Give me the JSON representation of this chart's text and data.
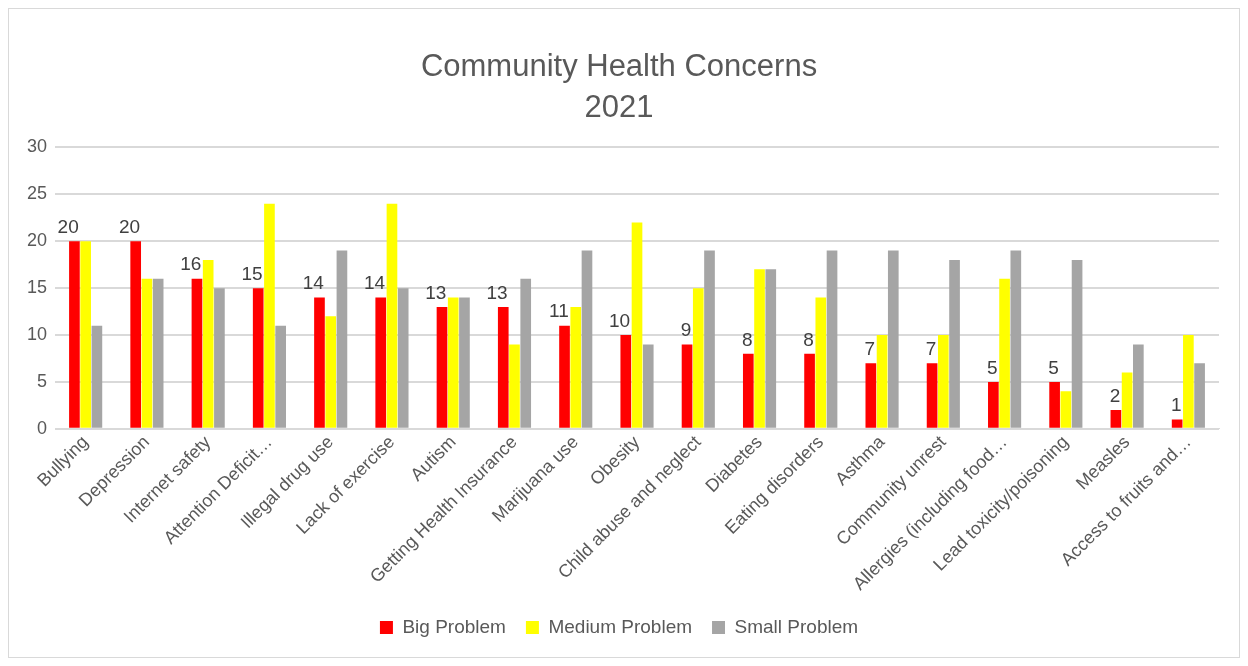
{
  "chart_data": {
    "type": "bar",
    "title": "Community Health Concerns",
    "subtitle": "2021",
    "categories": [
      "Bullying",
      "Depression",
      "Internet safety",
      "Attention Deficit…",
      "Illegal drug use",
      "Lack of exercise",
      "Autism",
      "Getting Health Insurance",
      "Marijuana use",
      "Obesity",
      "Child abuse and neglect",
      "Diabetes",
      "Eating disorders",
      "Asthma",
      "Community unrest",
      "Allergies (including food…",
      "Lead toxicity/poisoning",
      "Measles",
      "Access to fruits and…"
    ],
    "series": [
      {
        "name": "Big Problem",
        "color": "#ff0000",
        "values": [
          20,
          20,
          16,
          15,
          14,
          14,
          13,
          13,
          11,
          10,
          9,
          8,
          8,
          7,
          7,
          5,
          5,
          2,
          1
        ],
        "value_labels": [
          "20",
          "20",
          "16",
          "15",
          "14",
          "14",
          "13",
          "13",
          "11",
          "10",
          "9",
          "8",
          "8",
          "7",
          "7",
          "5",
          "5",
          "2",
          "1"
        ]
      },
      {
        "name": "Medium Problem",
        "color": "#ffff00",
        "values": [
          20,
          16,
          18,
          24,
          12,
          24,
          14,
          9,
          13,
          22,
          15,
          17,
          14,
          10,
          10,
          16,
          4,
          6,
          10
        ]
      },
      {
        "name": "Small Problem",
        "color": "#a5a5a5",
        "values": [
          11,
          16,
          15,
          11,
          19,
          15,
          14,
          16,
          19,
          9,
          19,
          17,
          19,
          19,
          18,
          19,
          18,
          9,
          7
        ]
      }
    ],
    "ylim": [
      0,
      30
    ],
    "yticks": [
      0,
      5,
      10,
      15,
      20,
      25,
      30
    ],
    "grid": "y",
    "legend": "bottom"
  }
}
